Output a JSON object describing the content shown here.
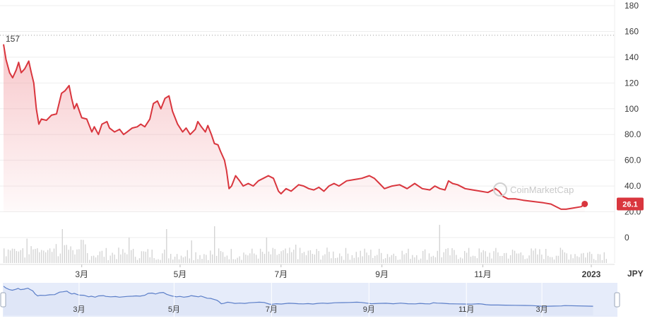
{
  "chart_data": {
    "type": "line",
    "currency": "JPY",
    "y_ticks": [
      "180",
      "160",
      "140",
      "120",
      "100",
      "80.0",
      "60.0",
      "40.0",
      "20.0",
      "0"
    ],
    "y_tick_values": [
      180,
      160,
      140,
      120,
      100,
      80,
      60,
      40,
      20,
      0
    ],
    "ylim": [
      0,
      180
    ],
    "x_ticks": [
      "3月",
      "5月",
      "7月",
      "9月",
      "11月",
      "2023"
    ],
    "x_tick_positions": [
      1.55,
      3.5,
      5.5,
      7.5,
      9.5,
      11.65
    ],
    "xlim": [
      0,
      12
    ],
    "nav_ticks": [
      "3月",
      "5月",
      "7月",
      "9月",
      "11月",
      "3月"
    ],
    "high_label": "157",
    "high_value": 157,
    "current_label": "26.1",
    "current_value": 26.1,
    "watermark": "CoinMarketCap",
    "grid": true,
    "colors": {
      "line": "#d9363e",
      "fill": "#f4a0a4",
      "label_bg": "#d9363e",
      "nav_line": "#5b7ec8",
      "nav_fill": "#e6ecfa",
      "volume": "#cfcfcf",
      "dotted": "#9a9a9a"
    },
    "series": [
      {
        "values": [
          [
            0.0,
            150
          ],
          [
            0.05,
            138
          ],
          [
            0.12,
            128
          ],
          [
            0.18,
            124
          ],
          [
            0.25,
            130
          ],
          [
            0.3,
            136
          ],
          [
            0.35,
            128
          ],
          [
            0.42,
            131
          ],
          [
            0.5,
            137
          ],
          [
            0.55,
            128
          ],
          [
            0.6,
            120
          ],
          [
            0.65,
            100
          ],
          [
            0.7,
            88
          ],
          [
            0.75,
            92
          ],
          [
            0.85,
            91
          ],
          [
            0.95,
            95
          ],
          [
            1.05,
            96
          ],
          [
            1.15,
            112
          ],
          [
            1.22,
            114
          ],
          [
            1.3,
            118
          ],
          [
            1.35,
            108
          ],
          [
            1.4,
            100
          ],
          [
            1.45,
            104
          ],
          [
            1.55,
            93
          ],
          [
            1.65,
            92
          ],
          [
            1.75,
            82
          ],
          [
            1.8,
            86
          ],
          [
            1.88,
            80
          ],
          [
            1.95,
            88
          ],
          [
            2.05,
            90
          ],
          [
            2.1,
            85
          ],
          [
            2.2,
            82
          ],
          [
            2.3,
            84
          ],
          [
            2.38,
            80
          ],
          [
            2.45,
            82
          ],
          [
            2.55,
            85
          ],
          [
            2.65,
            86
          ],
          [
            2.72,
            88
          ],
          [
            2.8,
            86
          ],
          [
            2.9,
            92
          ],
          [
            2.97,
            104
          ],
          [
            3.05,
            106
          ],
          [
            3.12,
            100
          ],
          [
            3.2,
            108
          ],
          [
            3.28,
            110
          ],
          [
            3.35,
            98
          ],
          [
            3.4,
            93
          ],
          [
            3.45,
            88
          ],
          [
            3.55,
            82
          ],
          [
            3.62,
            85
          ],
          [
            3.7,
            80
          ],
          [
            3.8,
            84
          ],
          [
            3.85,
            90
          ],
          [
            3.92,
            86
          ],
          [
            4.0,
            82
          ],
          [
            4.05,
            87
          ],
          [
            4.12,
            80
          ],
          [
            4.18,
            73
          ],
          [
            4.25,
            72
          ],
          [
            4.3,
            67
          ],
          [
            4.38,
            60
          ],
          [
            4.42,
            52
          ],
          [
            4.47,
            38
          ],
          [
            4.52,
            40
          ],
          [
            4.6,
            48
          ],
          [
            4.68,
            44
          ],
          [
            4.75,
            40
          ],
          [
            4.85,
            42
          ],
          [
            4.95,
            40
          ],
          [
            5.05,
            44
          ],
          [
            5.15,
            46
          ],
          [
            5.25,
            48
          ],
          [
            5.35,
            46
          ],
          [
            5.45,
            36
          ],
          [
            5.5,
            34
          ],
          [
            5.6,
            38
          ],
          [
            5.7,
            36
          ],
          [
            5.85,
            41
          ],
          [
            5.95,
            40
          ],
          [
            6.05,
            38
          ],
          [
            6.15,
            37
          ],
          [
            6.25,
            39
          ],
          [
            6.35,
            36
          ],
          [
            6.45,
            40
          ],
          [
            6.55,
            42
          ],
          [
            6.65,
            40
          ],
          [
            6.8,
            44
          ],
          [
            6.95,
            45
          ],
          [
            7.1,
            46
          ],
          [
            7.25,
            48
          ],
          [
            7.35,
            46
          ],
          [
            7.45,
            42
          ],
          [
            7.55,
            38
          ],
          [
            7.7,
            40
          ],
          [
            7.85,
            41
          ],
          [
            8.0,
            38
          ],
          [
            8.15,
            42
          ],
          [
            8.3,
            38
          ],
          [
            8.45,
            37
          ],
          [
            8.55,
            40
          ],
          [
            8.65,
            38
          ],
          [
            8.75,
            37
          ],
          [
            8.82,
            44
          ],
          [
            8.9,
            42
          ],
          [
            9.0,
            41
          ],
          [
            9.15,
            38
          ],
          [
            9.3,
            37
          ],
          [
            9.45,
            36
          ],
          [
            9.6,
            35
          ],
          [
            9.75,
            38
          ],
          [
            9.82,
            36
          ],
          [
            9.9,
            32
          ],
          [
            10.0,
            30
          ],
          [
            10.15,
            30
          ],
          [
            10.3,
            29
          ],
          [
            10.5,
            28
          ],
          [
            10.7,
            27
          ],
          [
            10.85,
            26
          ],
          [
            10.95,
            24
          ],
          [
            11.05,
            22
          ],
          [
            11.15,
            22
          ],
          [
            11.3,
            23
          ],
          [
            11.45,
            24
          ],
          [
            11.52,
            26.1
          ]
        ]
      }
    ]
  }
}
